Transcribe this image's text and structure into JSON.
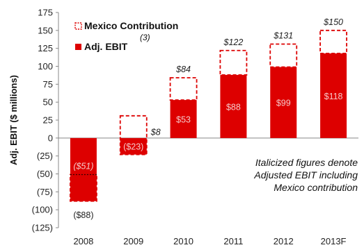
{
  "chart_data": {
    "type": "bar",
    "categories": [
      "2008",
      "2009",
      "2010",
      "2011",
      "2012",
      "2013F"
    ],
    "ylabel": "Adj. EBIT ($ millions)",
    "ylim": [
      -125,
      175
    ],
    "yticks": [
      175,
      150,
      125,
      100,
      75,
      50,
      25,
      0,
      -25,
      -50,
      -75,
      -100,
      -125
    ],
    "ytick_labels": [
      "175",
      "150",
      "125",
      "100",
      "75",
      "50",
      "25",
      "0",
      "(25)",
      "(50)",
      "(75)",
      "(100)",
      "(125)"
    ],
    "series": [
      {
        "name": "Adj. EBIT",
        "values": [
          -88,
          -23,
          53,
          88,
          99,
          118
        ],
        "labels": [
          "($88)",
          "($23)",
          "$53",
          "$88",
          "$99",
          "$118"
        ],
        "color": "#dd0000"
      },
      {
        "name": "Mexico Contribution",
        "values": [
          37,
          31,
          31,
          34,
          32,
          32
        ],
        "style": "dashed outline",
        "color": "#dd0000"
      }
    ],
    "totals": [
      -51,
      8,
      84,
      122,
      131,
      150
    ],
    "total_labels": [
      "($51)",
      "$8",
      "$84",
      "$122",
      "$131",
      "$150"
    ],
    "legend": {
      "placement": "top-left",
      "entries": [
        "Mexico Contribution",
        "Adj. EBIT"
      ],
      "superscript": "(3)"
    },
    "annotation": [
      "Italicized figures denote",
      "Adjusted EBIT including",
      "Mexico contribution"
    ],
    "grid": false,
    "colors": {
      "bar": "#dd0000",
      "dash": "#dd0000",
      "axis": "#888888"
    }
  }
}
